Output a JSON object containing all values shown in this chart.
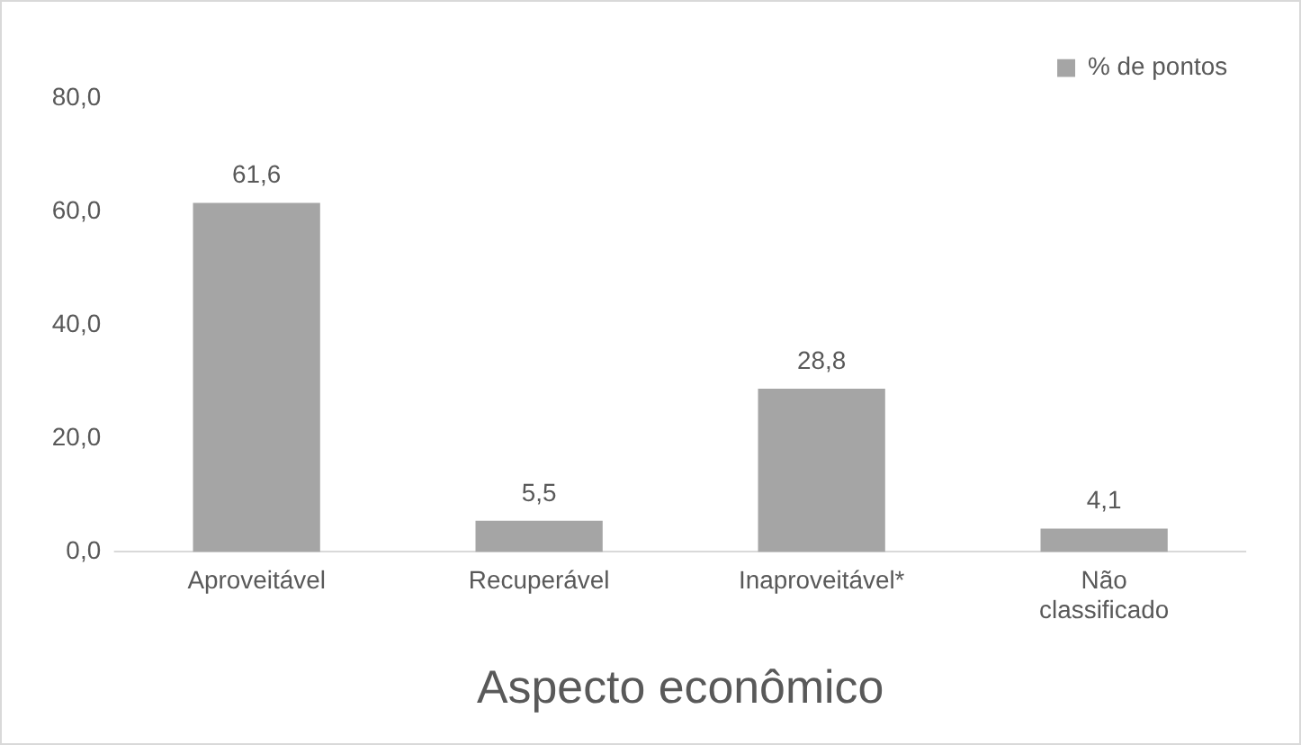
{
  "chart_data": {
    "type": "bar",
    "xlabel": "Aspecto econômico",
    "categories": [
      "Aproveitável",
      "Recuperável",
      "Inaproveitável*",
      "Não classificado"
    ],
    "series": [
      {
        "name": "% de pontos",
        "color": "#a5a5a5",
        "values": [
          61.6,
          5.5,
          28.8,
          4.1
        ],
        "value_labels": [
          "61,6",
          "5,5",
          "28,8",
          "4,1"
        ]
      }
    ],
    "ylim": [
      0,
      80
    ],
    "yticks": [
      {
        "value": 0,
        "label": "0,0"
      },
      {
        "value": 20,
        "label": "20,0"
      },
      {
        "value": 40,
        "label": "40,0"
      },
      {
        "value": 60,
        "label": "60,0"
      },
      {
        "value": 80,
        "label": "80,0"
      }
    ],
    "grid": false,
    "legend": "top right"
  }
}
